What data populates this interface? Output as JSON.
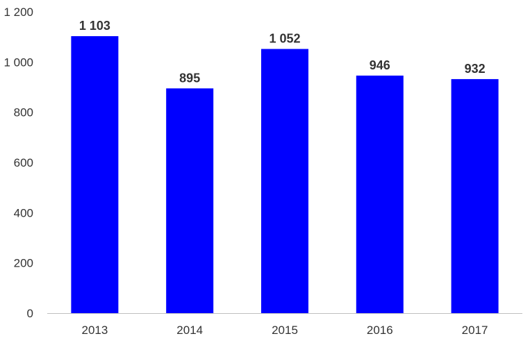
{
  "chart_data": {
    "type": "bar",
    "categories": [
      "2013",
      "2014",
      "2015",
      "2016",
      "2017"
    ],
    "values": [
      1103,
      895,
      1052,
      946,
      932
    ],
    "data_labels": [
      "1 103",
      "895",
      "1 052",
      "946",
      "932"
    ],
    "title": "",
    "xlabel": "",
    "ylabel": "",
    "ylim": [
      0,
      1200
    ],
    "yticks": [
      0,
      200,
      400,
      600,
      800,
      1000,
      1200
    ],
    "ytick_labels": [
      "0",
      "200",
      "400",
      "600",
      "800",
      "1 000",
      "1 200"
    ],
    "grid": false,
    "legend": "none",
    "bar_color": "#0000ff",
    "axis_color": "#bfbfbf",
    "text_color": "#333333"
  }
}
